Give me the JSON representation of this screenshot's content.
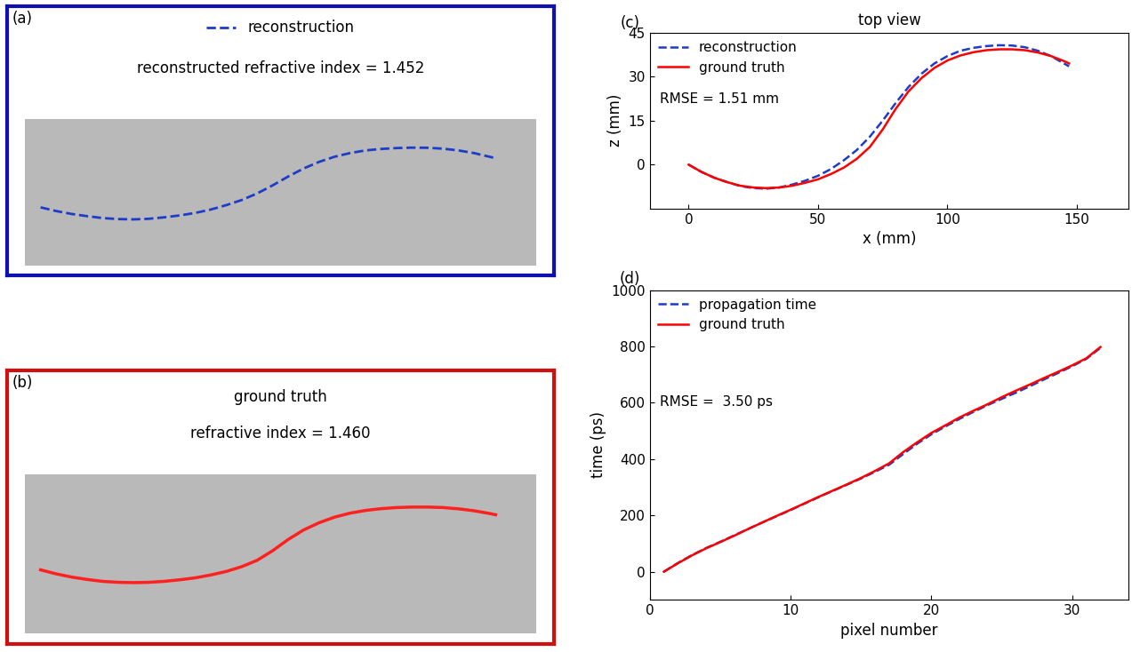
{
  "chart_data": [
    {
      "type": "image",
      "panel": "(a)",
      "legend": "upper center",
      "tick_labels": false,
      "annotation": "reconstructed refractive index = 1.452",
      "xlim": [
        -5,
        160
      ],
      "ylim": [
        -40,
        60
      ],
      "series": [
        {
          "name": "reconstruction",
          "color": "#1f3cc8",
          "line_style": "dashed",
          "x": [
            0,
            5,
            10,
            15,
            20,
            25,
            30,
            35,
            40,
            45,
            50,
            55,
            60,
            65,
            70,
            75,
            80,
            85,
            90,
            95,
            100,
            105,
            110,
            115,
            120,
            125,
            130,
            135,
            140,
            145,
            147
          ],
          "values": [
            0,
            -2.5,
            -4.5,
            -6,
            -7.3,
            -8,
            -8.2,
            -7.8,
            -6.8,
            -5.5,
            -3.8,
            -1.5,
            1.5,
            5,
            9.5,
            15,
            21,
            26.5,
            31,
            34.5,
            37,
            38.8,
            39.8,
            40.4,
            40.7,
            40.6,
            40,
            38.8,
            37,
            34.5,
            33.5
          ]
        }
      ]
    },
    {
      "type": "image",
      "panel": "(b)",
      "title": "ground truth",
      "tick_labels": false,
      "annotation": "refractive index = 1.460",
      "xlim": [
        -5,
        160
      ],
      "ylim": [
        -40,
        60
      ],
      "series": [
        {
          "color": "#ff2020",
          "line_style": "solid",
          "x": [
            0,
            5,
            10,
            15,
            20,
            25,
            30,
            35,
            40,
            45,
            50,
            55,
            60,
            65,
            70,
            75,
            80,
            85,
            90,
            95,
            100,
            105,
            110,
            115,
            120,
            125,
            130,
            135,
            140,
            145,
            147
          ],
          "values": [
            0,
            -2.5,
            -4.5,
            -6,
            -7.2,
            -7.8,
            -8,
            -7.8,
            -7.2,
            -6.2,
            -5,
            -3.2,
            -1,
            2,
            6,
            12,
            19,
            25,
            29.5,
            33,
            35.5,
            37.2,
            38.3,
            39,
            39.3,
            39.3,
            39,
            38.2,
            37,
            35.3,
            34.5
          ]
        }
      ]
    },
    {
      "type": "line",
      "panel": "(c)",
      "title": "top view",
      "x_label": "x (mm)",
      "y_label": "z (mm)",
      "annotation": "RMSE = 1.51 mm",
      "legend": "upper left",
      "grid": false,
      "xlim": [
        -15,
        170
      ],
      "ylim": [
        -15,
        45
      ],
      "xticks": [
        0,
        50,
        100,
        150
      ],
      "yticks": [
        0,
        15,
        30,
        45
      ],
      "series": [
        {
          "name": "reconstruction",
          "color": "#1f3cc8",
          "line_style": "dashed",
          "x": [
            0,
            5,
            10,
            15,
            20,
            25,
            30,
            35,
            40,
            45,
            50,
            55,
            60,
            65,
            70,
            75,
            80,
            85,
            90,
            95,
            100,
            105,
            110,
            115,
            120,
            125,
            130,
            135,
            140,
            145,
            147
          ],
          "values": [
            0,
            -2.5,
            -4.5,
            -6,
            -7.3,
            -8,
            -8.2,
            -7.8,
            -6.8,
            -5.5,
            -3.8,
            -1.5,
            1.5,
            5,
            9.5,
            15,
            21,
            26.5,
            31,
            34.5,
            37,
            38.8,
            39.8,
            40.4,
            40.7,
            40.6,
            40,
            38.8,
            37,
            34.5,
            33.5
          ]
        },
        {
          "name": "ground truth",
          "color": "#ff0000",
          "line_style": "solid",
          "x": [
            0,
            5,
            10,
            15,
            20,
            25,
            30,
            35,
            40,
            45,
            50,
            55,
            60,
            65,
            70,
            75,
            80,
            85,
            90,
            95,
            100,
            105,
            110,
            115,
            120,
            125,
            130,
            135,
            140,
            145,
            147
          ],
          "values": [
            0,
            -2.5,
            -4.5,
            -6,
            -7.2,
            -7.8,
            -8,
            -7.8,
            -7.2,
            -6.2,
            -5,
            -3.2,
            -1,
            2,
            6,
            12,
            19,
            25,
            29.5,
            33,
            35.5,
            37.2,
            38.3,
            39,
            39.3,
            39.3,
            39,
            38.2,
            37,
            35.3,
            34.5
          ]
        }
      ]
    },
    {
      "type": "line",
      "panel": "(d)",
      "x_label": "pixel number",
      "y_label": "time (ps)",
      "annotation": "RMSE =  3.50 ps",
      "legend": "upper left",
      "grid": false,
      "xlim": [
        0,
        34
      ],
      "ylim": [
        -100,
        1000
      ],
      "xticks": [
        0,
        10,
        20,
        30
      ],
      "yticks": [
        0,
        200,
        400,
        600,
        800,
        1000
      ],
      "series": [
        {
          "name": "propagation time",
          "color": "#1f3cc8",
          "line_style": "dashed",
          "x": [
            1,
            2,
            3,
            4,
            5,
            6,
            7,
            8,
            9,
            10,
            11,
            12,
            13,
            14,
            15,
            16,
            17,
            18,
            19,
            20,
            21,
            22,
            23,
            24,
            25,
            26,
            27,
            28,
            29,
            30,
            31,
            32
          ],
          "values": [
            0,
            31,
            59,
            84,
            106,
            129,
            152,
            175,
            197,
            219,
            242,
            265,
            287,
            309,
            331,
            355,
            380,
            418,
            455,
            488,
            516,
            543,
            568,
            592,
            614,
            636,
            659,
            683,
            706,
            730,
            756,
            795
          ]
        },
        {
          "name": "ground truth",
          "color": "#ff0000",
          "line_style": "solid",
          "x": [
            1,
            2,
            3,
            4,
            5,
            6,
            7,
            8,
            9,
            10,
            11,
            12,
            13,
            14,
            15,
            16,
            17,
            18,
            19,
            20,
            21,
            22,
            23,
            24,
            25,
            26,
            27,
            28,
            29,
            30,
            31,
            32
          ],
          "values": [
            0,
            30,
            58,
            83,
            105,
            128,
            152,
            175,
            198,
            220,
            243,
            266,
            288,
            310,
            333,
            358,
            385,
            425,
            460,
            493,
            520,
            548,
            572,
            595,
            620,
            643,
            665,
            688,
            710,
            733,
            758,
            798
          ]
        }
      ]
    }
  ]
}
